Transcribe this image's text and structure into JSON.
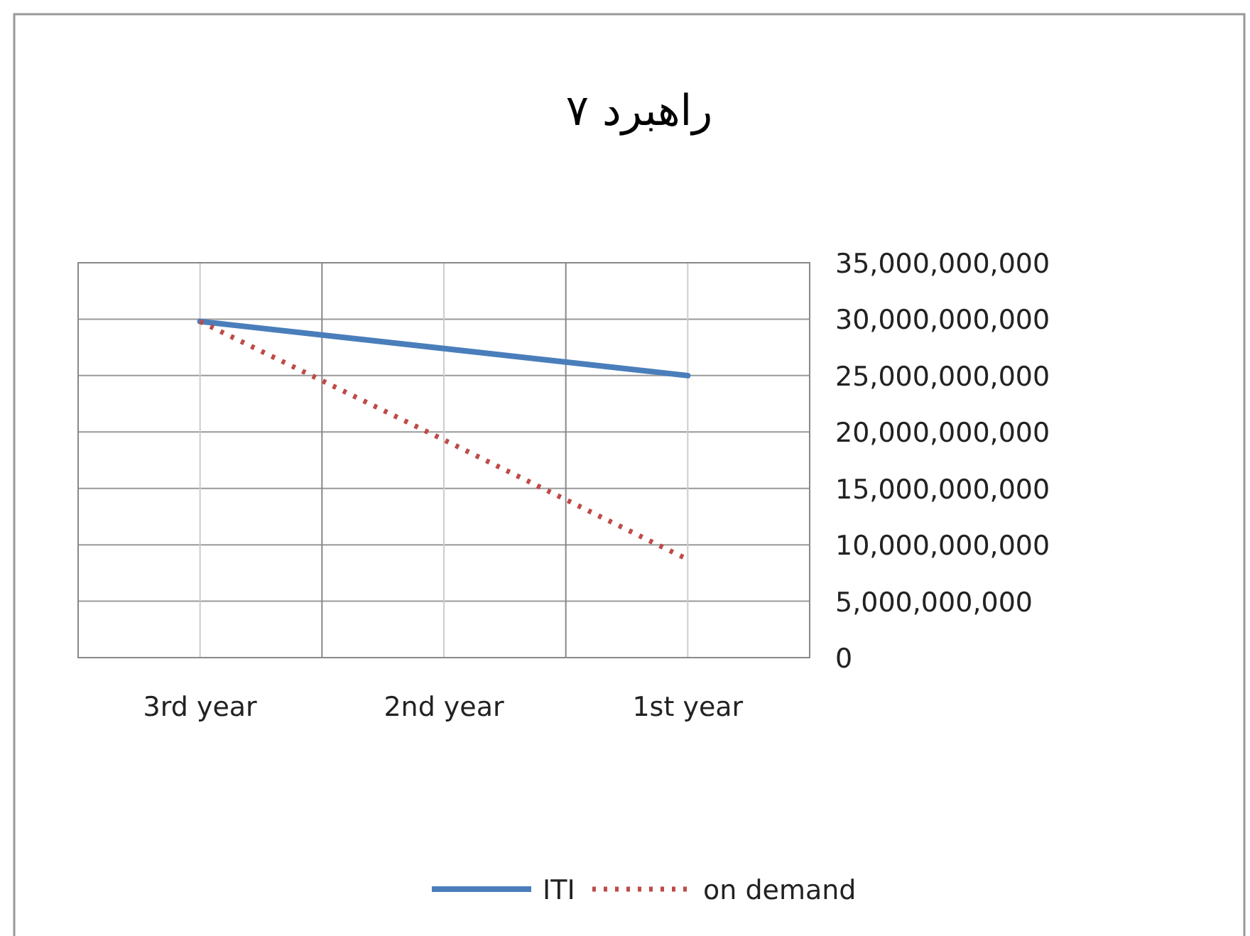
{
  "chart_data": {
    "type": "line",
    "title": "راهبرد ۷",
    "categories": [
      "3rd year",
      "2nd year",
      "1st year"
    ],
    "series": [
      {
        "name": "ITI",
        "color": "#4a7ebb",
        "values": [
          29800000000,
          27400000000,
          25000000000
        ],
        "line_style": "solid"
      },
      {
        "name": "on demand",
        "color": "#be4b48",
        "values": [
          29800000000,
          19300000000,
          8700000000
        ],
        "line_style": "dotted"
      }
    ],
    "ylim": [
      0,
      35000000000
    ],
    "yticks": [
      {
        "value": 0,
        "label": "0"
      },
      {
        "value": 5000000000,
        "label": "5,000,000,000"
      },
      {
        "value": 10000000000,
        "label": "10,000,000,000"
      },
      {
        "value": 15000000000,
        "label": "15,000,000,000"
      },
      {
        "value": 20000000000,
        "label": "20,000,000,000"
      },
      {
        "value": 25000000000,
        "label": "25,000,000,000"
      },
      {
        "value": 30000000000,
        "label": "30,000,000,000"
      },
      {
        "value": 35000000000,
        "label": "35,000,000,000"
      }
    ],
    "grid": true,
    "legend": "bottom",
    "marker": "none"
  }
}
